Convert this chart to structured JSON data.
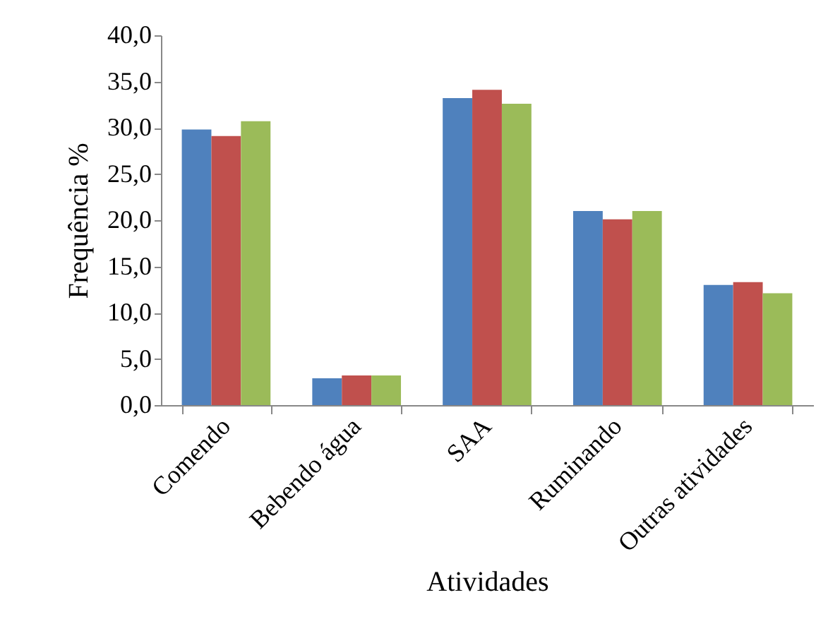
{
  "chart_data": {
    "type": "bar",
    "xlabel": "Atividades",
    "ylabel": "Frequência %",
    "categories": [
      "Comendo",
      "Bebendo água",
      "SAA",
      "Ruminando",
      "Outras atividades"
    ],
    "series": [
      {
        "color": "#4f81bd",
        "values": [
          29.8,
          2.9,
          33.2,
          21.0,
          13.0
        ]
      },
      {
        "color": "#c0504d",
        "values": [
          29.1,
          3.2,
          34.1,
          20.1,
          13.3
        ]
      },
      {
        "color": "#9bbb59",
        "values": [
          30.7,
          3.2,
          32.6,
          21.0,
          12.1
        ]
      }
    ],
    "ylim": [
      0,
      40
    ],
    "yticks": [
      {
        "value": 0,
        "label": "0,0"
      },
      {
        "value": 5,
        "label": "5,0"
      },
      {
        "value": 10,
        "label": "10,0"
      },
      {
        "value": 15,
        "label": "15,0"
      },
      {
        "value": 20,
        "label": "20,0"
      },
      {
        "value": 25,
        "label": "25,0"
      },
      {
        "value": 30,
        "label": "30,0"
      },
      {
        "value": 35,
        "label": "35,0"
      },
      {
        "value": 40,
        "label": "40,0"
      }
    ],
    "grid": false,
    "legend": false
  }
}
